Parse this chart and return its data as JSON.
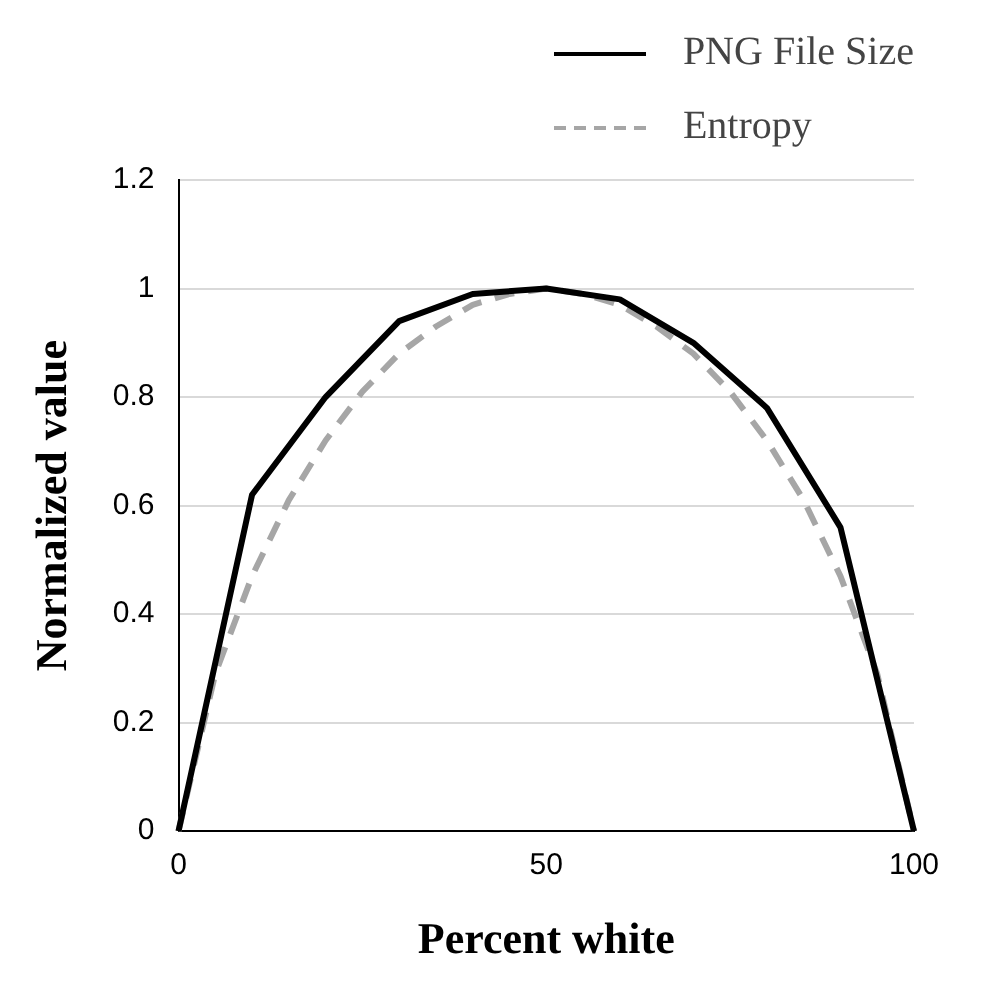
{
  "chart_data": {
    "type": "line",
    "xlabel": "Percent white",
    "ylabel": "Normalized value",
    "xlim": [
      0,
      100
    ],
    "xticks": [
      0,
      50,
      100
    ],
    "ylim": [
      0,
      1.2
    ],
    "yticks": [
      0,
      0.2,
      0.4,
      0.6,
      0.8,
      1,
      1.2
    ],
    "grid": "y",
    "legend": "top right",
    "marker": "none",
    "series": [
      {
        "name": "PNG File Size",
        "color": "#000000",
        "line_style": "solid",
        "x": [
          0,
          10,
          20,
          30,
          40,
          50,
          60,
          70,
          80,
          90,
          100
        ],
        "values": [
          0,
          0.62,
          0.8,
          0.94,
          0.99,
          1,
          0.98,
          0.9,
          0.78,
          0.56,
          0
        ]
      },
      {
        "name": "Entropy",
        "color": "#a6a6a6",
        "line_style": "dashed",
        "x": [
          0,
          5,
          10,
          15,
          20,
          25,
          30,
          35,
          40,
          45,
          50,
          55,
          60,
          65,
          70,
          75,
          80,
          85,
          90,
          95,
          100
        ],
        "values": [
          0,
          0.29,
          0.47,
          0.61,
          0.72,
          0.81,
          0.88,
          0.93,
          0.97,
          0.99,
          1,
          0.99,
          0.97,
          0.93,
          0.88,
          0.81,
          0.72,
          0.61,
          0.47,
          0.29,
          0
        ]
      }
    ]
  }
}
